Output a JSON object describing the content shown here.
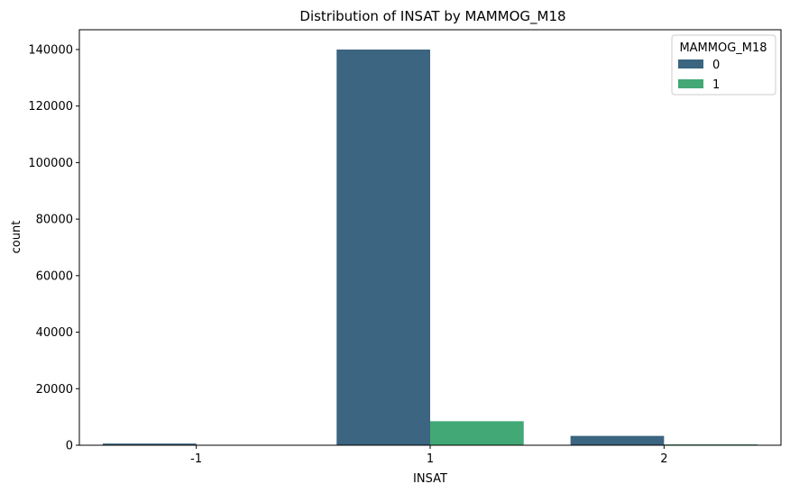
{
  "chart_data": {
    "type": "bar",
    "title": "Distribution of INSAT by MAMMOG_M18",
    "xlabel": "INSAT",
    "ylabel": "count",
    "categories": [
      "-1",
      "1",
      "2"
    ],
    "ylim": [
      0,
      147000
    ],
    "yticks": [
      0,
      20000,
      40000,
      60000,
      80000,
      100000,
      120000,
      140000
    ],
    "grid": false,
    "legend": {
      "title": "MAMMOG_M18",
      "placement": "top-right"
    },
    "series": [
      {
        "name": "0",
        "color": "#3b6580",
        "values": [
          600,
          140000,
          3300
        ]
      },
      {
        "name": "1",
        "color": "#42a875",
        "values": [
          60,
          8500,
          300
        ]
      }
    ]
  }
}
